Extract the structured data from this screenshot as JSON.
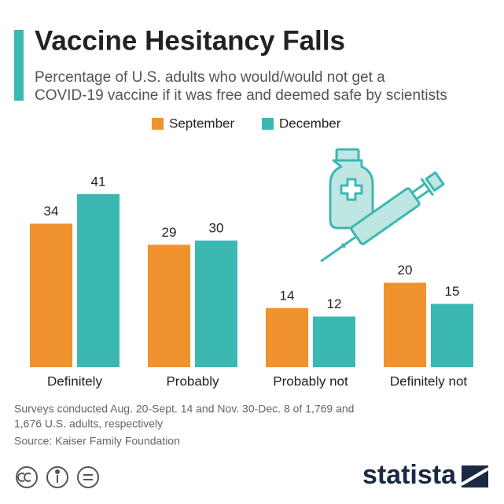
{
  "chart_data": {
    "type": "bar",
    "title": "Vaccine Hesitancy Falls",
    "subtitle": [
      "Percentage of U.S. adults who would/would not get a",
      "COVID-19 vaccine if it was free and deemed safe by scientists"
    ],
    "categories": [
      "Definitely",
      "Probably",
      "Probably not",
      "Definitely not"
    ],
    "series": [
      {
        "name": "September",
        "color": "#f0922e",
        "values": [
          34,
          29,
          14,
          20
        ]
      },
      {
        "name": "December",
        "color": "#3cb8b2",
        "values": [
          41,
          30,
          12,
          15
        ]
      }
    ]
  },
  "notes": [
    "Surveys conducted Aug. 20-Sept. 14 and Nov. 30-Dec. 8 of 1,769 and",
    "1,676 U.S. adults, respectively"
  ],
  "source": "Source: Kaiser Family Foundation",
  "brand": "statista"
}
